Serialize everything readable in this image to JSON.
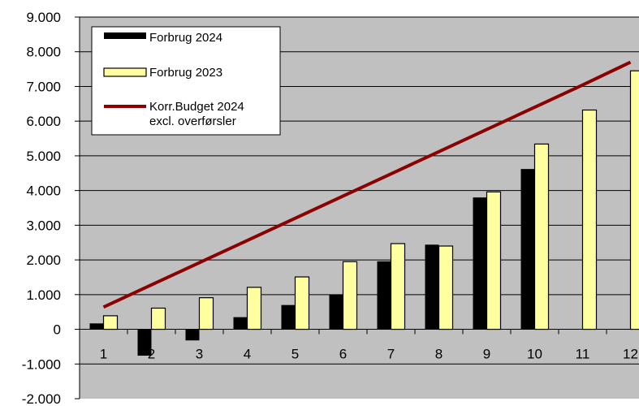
{
  "chart_data": {
    "type": "bar",
    "categories": [
      "1",
      "2",
      "3",
      "4",
      "5",
      "6",
      "7",
      "8",
      "9",
      "10",
      "11",
      "12"
    ],
    "series": [
      {
        "name": "Forbrug 2024",
        "type": "bar",
        "color": "#000000",
        "values": [
          170,
          -760,
          -320,
          350,
          700,
          1000,
          1960,
          2440,
          3800,
          4620,
          null,
          null
        ]
      },
      {
        "name": "Forbrug 2023",
        "type": "bar",
        "color": "#ffffa0",
        "values": [
          390,
          610,
          910,
          1210,
          1510,
          1950,
          2470,
          2400,
          3960,
          5340,
          6320,
          7450
        ]
      },
      {
        "name": "Korr.Budget 2024 excl. overførsler",
        "type": "line",
        "color": "#8b0000",
        "values": [
          640,
          1280,
          1920,
          2560,
          3200,
          3840,
          4480,
          5120,
          5760,
          6400,
          7040,
          7700
        ]
      }
    ],
    "ylim": [
      -2000,
      9000
    ],
    "yticks": [
      "-2.000",
      "-1.000",
      "0",
      "1.000",
      "2.000",
      "3.000",
      "4.000",
      "5.000",
      "6.000",
      "7.000",
      "8.000",
      "9.000"
    ],
    "grid": true,
    "legend": {
      "placement": "top-left",
      "entries": [
        {
          "line1": "Forbrug 2024",
          "line2": ""
        },
        {
          "line1": "Forbrug 2023",
          "line2": ""
        },
        {
          "line1": "Korr.Budget 2024",
          "line2": "excl. overførsler"
        }
      ]
    },
    "colors": {
      "plot_bg": "#c0c0c0",
      "grid": "#000000"
    }
  }
}
